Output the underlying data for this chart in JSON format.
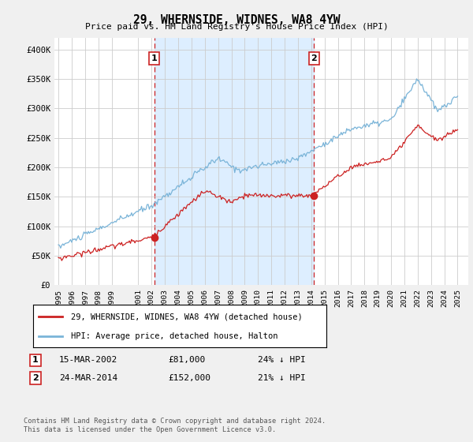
{
  "title": "29, WHERNSIDE, WIDNES, WA8 4YW",
  "subtitle": "Price paid vs. HM Land Registry's House Price Index (HPI)",
  "ylim": [
    0,
    420000
  ],
  "yticks": [
    0,
    50000,
    100000,
    150000,
    200000,
    250000,
    300000,
    350000,
    400000
  ],
  "ytick_labels": [
    "£0",
    "£50K",
    "£100K",
    "£150K",
    "£200K",
    "£250K",
    "£300K",
    "£350K",
    "£400K"
  ],
  "background_color": "#f0f0f0",
  "plot_bg_color": "#ffffff",
  "shade_color": "#ddeeff",
  "hpi_color": "#7ab4d8",
  "price_color": "#cc2222",
  "vline_color": "#cc2222",
  "grid_color": "#cccccc",
  "sale1_x": 2002.21,
  "sale1_y": 81000,
  "sale1_label": "1",
  "sale1_date": "15-MAR-2002",
  "sale1_price": "£81,000",
  "sale1_hpi": "24% ↓ HPI",
  "sale2_x": 2014.21,
  "sale2_y": 152000,
  "sale2_label": "2",
  "sale2_date": "24-MAR-2014",
  "sale2_price": "£152,000",
  "sale2_hpi": "21% ↓ HPI",
  "legend_label1": "29, WHERNSIDE, WIDNES, WA8 4YW (detached house)",
  "legend_label2": "HPI: Average price, detached house, Halton",
  "footer": "Contains HM Land Registry data © Crown copyright and database right 2024.\nThis data is licensed under the Open Government Licence v3.0.",
  "xtick_positions": [
    1995,
    1996,
    1997,
    1998,
    1999,
    2001,
    2002,
    2003,
    2004,
    2005,
    2006,
    2007,
    2008,
    2009,
    2010,
    2011,
    2012,
    2013,
    2014,
    2015,
    2016,
    2017,
    2018,
    2019,
    2020,
    2021,
    2022,
    2023,
    2024,
    2025
  ],
  "xlim_left": 1994.7,
  "xlim_right": 2025.8
}
